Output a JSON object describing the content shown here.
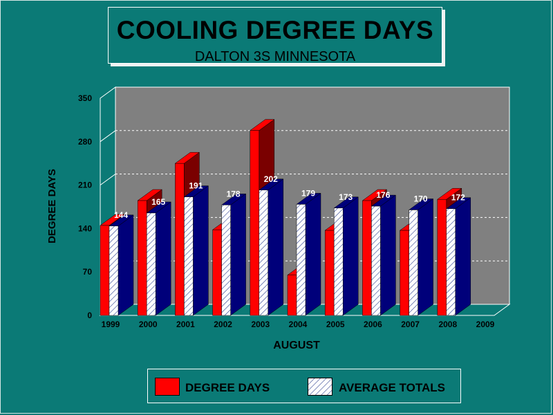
{
  "chart_data": {
    "type": "bar",
    "title": "COOLING DEGREE DAYS",
    "subtitle": "DALTON 3S MINNESOTA",
    "xlabel": "AUGUST",
    "ylabel": "DEGREE DAYS",
    "categories": [
      "1999",
      "2000",
      "2001",
      "2002",
      "2003",
      "2004",
      "2005",
      "2006",
      "2007",
      "2008",
      "2009"
    ],
    "ylim": [
      0,
      350
    ],
    "yticks": [
      0,
      70,
      140,
      210,
      280,
      350
    ],
    "grid": true,
    "legend_position": "bottom",
    "series": [
      {
        "name": "DEGREE DAYS",
        "values": [
          145,
          185,
          245,
          138,
          298,
          65,
          137,
          185,
          137,
          187,
          null
        ],
        "color": "#ff0000",
        "side_color": "#7a0000",
        "pattern": "solid"
      },
      {
        "name": "AVERAGE TOTALS",
        "values": [
          144,
          165,
          191,
          178,
          202,
          179,
          173,
          176,
          170,
          172,
          null
        ],
        "color": "#ffffff",
        "side_color": "#00007a",
        "pattern": "hatched",
        "data_labels": [
          "144",
          "165",
          "191",
          "178",
          "202",
          "179",
          "173",
          "176",
          "170",
          "172",
          ""
        ]
      }
    ]
  },
  "colors": {
    "background": "#0b7a76",
    "plot_back": "#808080",
    "floor": "#0b7a76"
  }
}
